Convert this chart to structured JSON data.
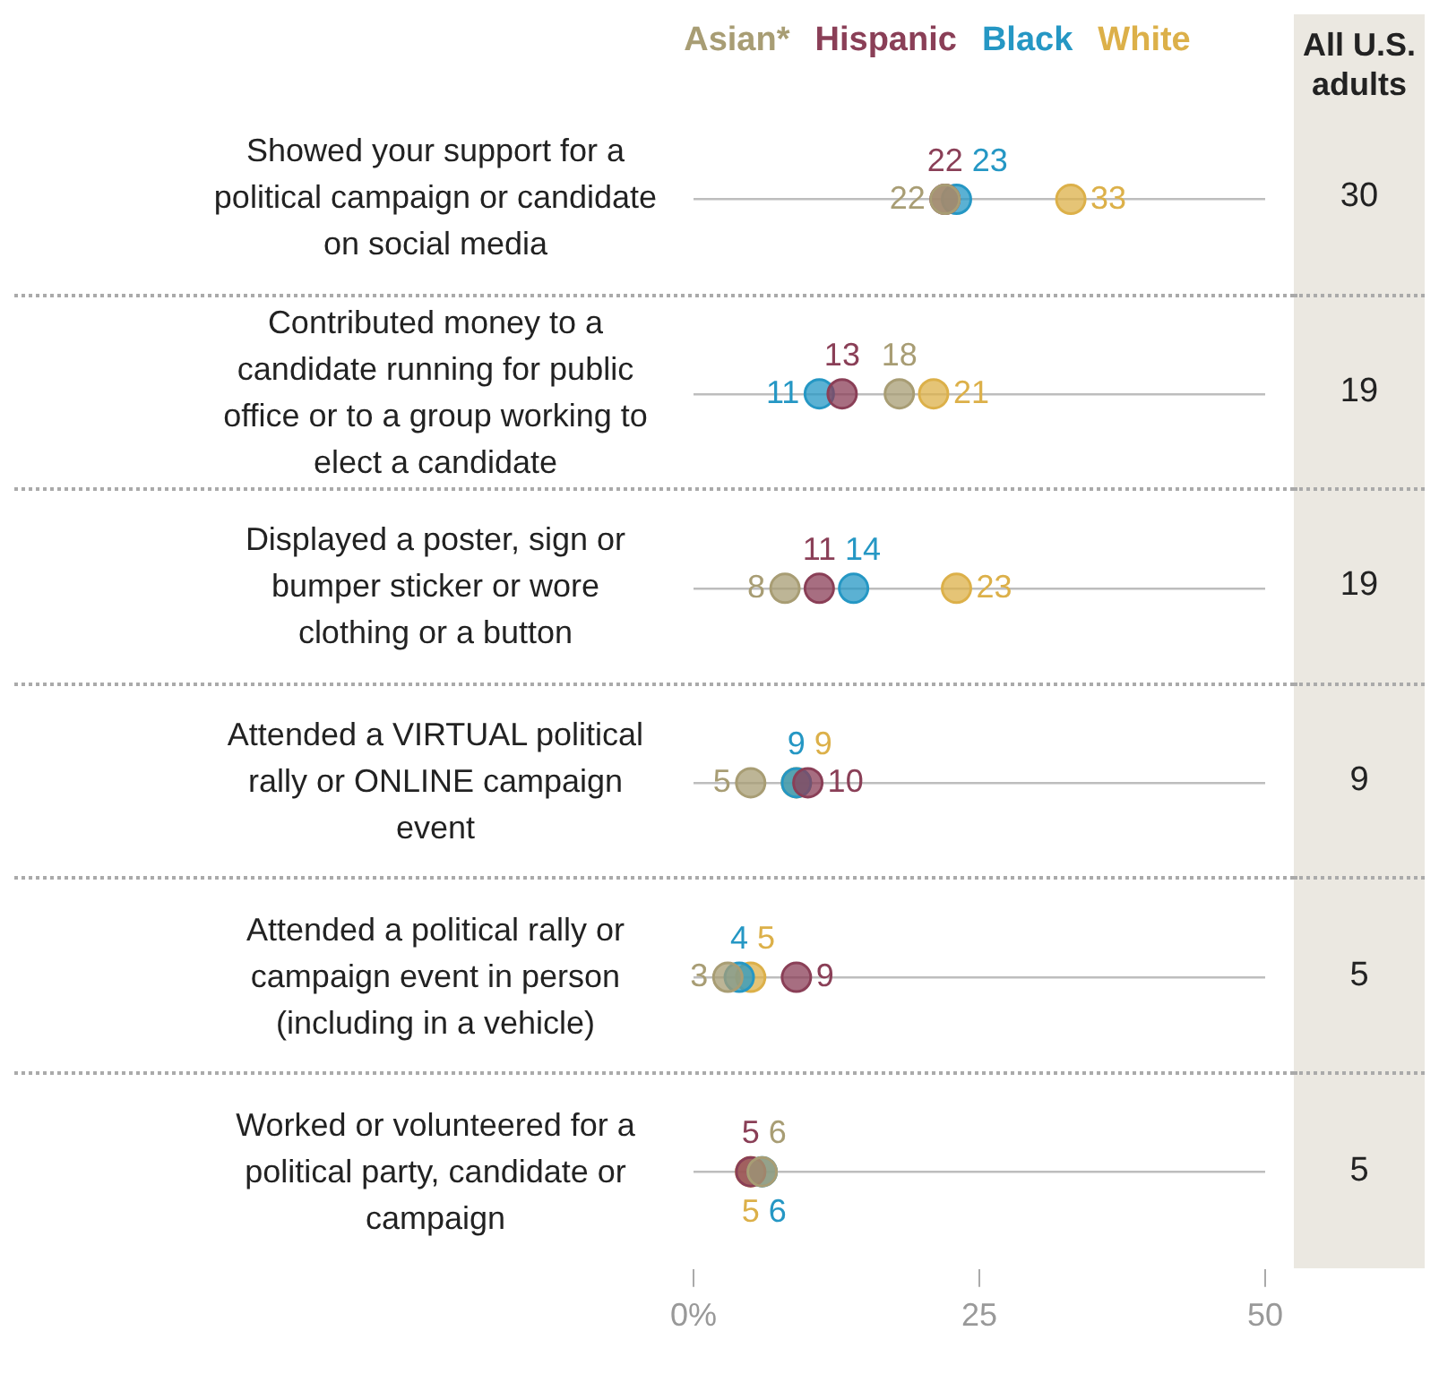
{
  "chart_data": [
    {
      "type": "scatter",
      "orientation": "horizontal",
      "categories": [
        "Showed your support for a political campaign or candidate on social media",
        "Contributed money to a candidate running  for public office or to a group working to elect a candidate",
        "Displayed a poster, sign or bumper sticker or wore clothing or a button",
        "Attended a VIRTUAL political rally or ONLINE campaign event",
        "Attended a political rally or campaign event in person (including in a vehicle)",
        "Worked or volunteered for a political party, candidate or campaign"
      ],
      "series": [
        {
          "name": "Asian*",
          "color": "#a89d74",
          "values": [
            22,
            18,
            8,
            5,
            3,
            6
          ]
        },
        {
          "name": "Hispanic",
          "color": "#8a3f57",
          "values": [
            22,
            13,
            11,
            10,
            9,
            5
          ]
        },
        {
          "name": "Black",
          "color": "#2597c4",
          "values": [
            23,
            11,
            14,
            9,
            4,
            6
          ]
        },
        {
          "name": "White",
          "color": "#dcb049",
          "values": [
            33,
            21,
            23,
            9,
            5,
            5
          ]
        }
      ],
      "xlim": [
        0,
        50
      ],
      "xticks": [
        {
          "value": 0,
          "label": "0%"
        },
        25,
        50
      ],
      "grid": "y",
      "legend": "top",
      "marker": "circle",
      "data_labels": true
    },
    {
      "type": "other",
      "title": "All U.S. adults",
      "values": [
        30,
        19,
        19,
        9,
        5,
        5
      ],
      "data_labels": true
    }
  ]
}
